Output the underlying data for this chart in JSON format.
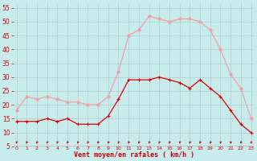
{
  "hours": [
    0,
    1,
    2,
    3,
    4,
    5,
    6,
    7,
    8,
    9,
    10,
    11,
    12,
    13,
    14,
    15,
    16,
    17,
    18,
    19,
    20,
    21,
    22,
    23
  ],
  "wind_avg": [
    14,
    14,
    14,
    15,
    14,
    15,
    13,
    13,
    13,
    16,
    22,
    29,
    29,
    29,
    30,
    29,
    28,
    26,
    29,
    26,
    23,
    18,
    13,
    10
  ],
  "wind_gust": [
    18,
    23,
    22,
    23,
    22,
    21,
    21,
    20,
    20,
    23,
    32,
    45,
    47,
    52,
    51,
    50,
    51,
    51,
    50,
    47,
    40,
    31,
    26,
    15
  ],
  "avg_color": "#dd0000",
  "gust_color": "#f0a0a0",
  "background_color": "#c8ecec",
  "grid_color": "#b0cccc",
  "axis_label_color": "#cc0000",
  "tick_color": "#cc0000",
  "xlabel": "Vent moyen/en rafales ( km/h )",
  "ylim": [
    5,
    57
  ],
  "yticks": [
    5,
    10,
    15,
    20,
    25,
    30,
    35,
    40,
    45,
    50,
    55
  ],
  "arrow_color": "#cc0000",
  "marker_avg": "+",
  "marker_gust": "+"
}
